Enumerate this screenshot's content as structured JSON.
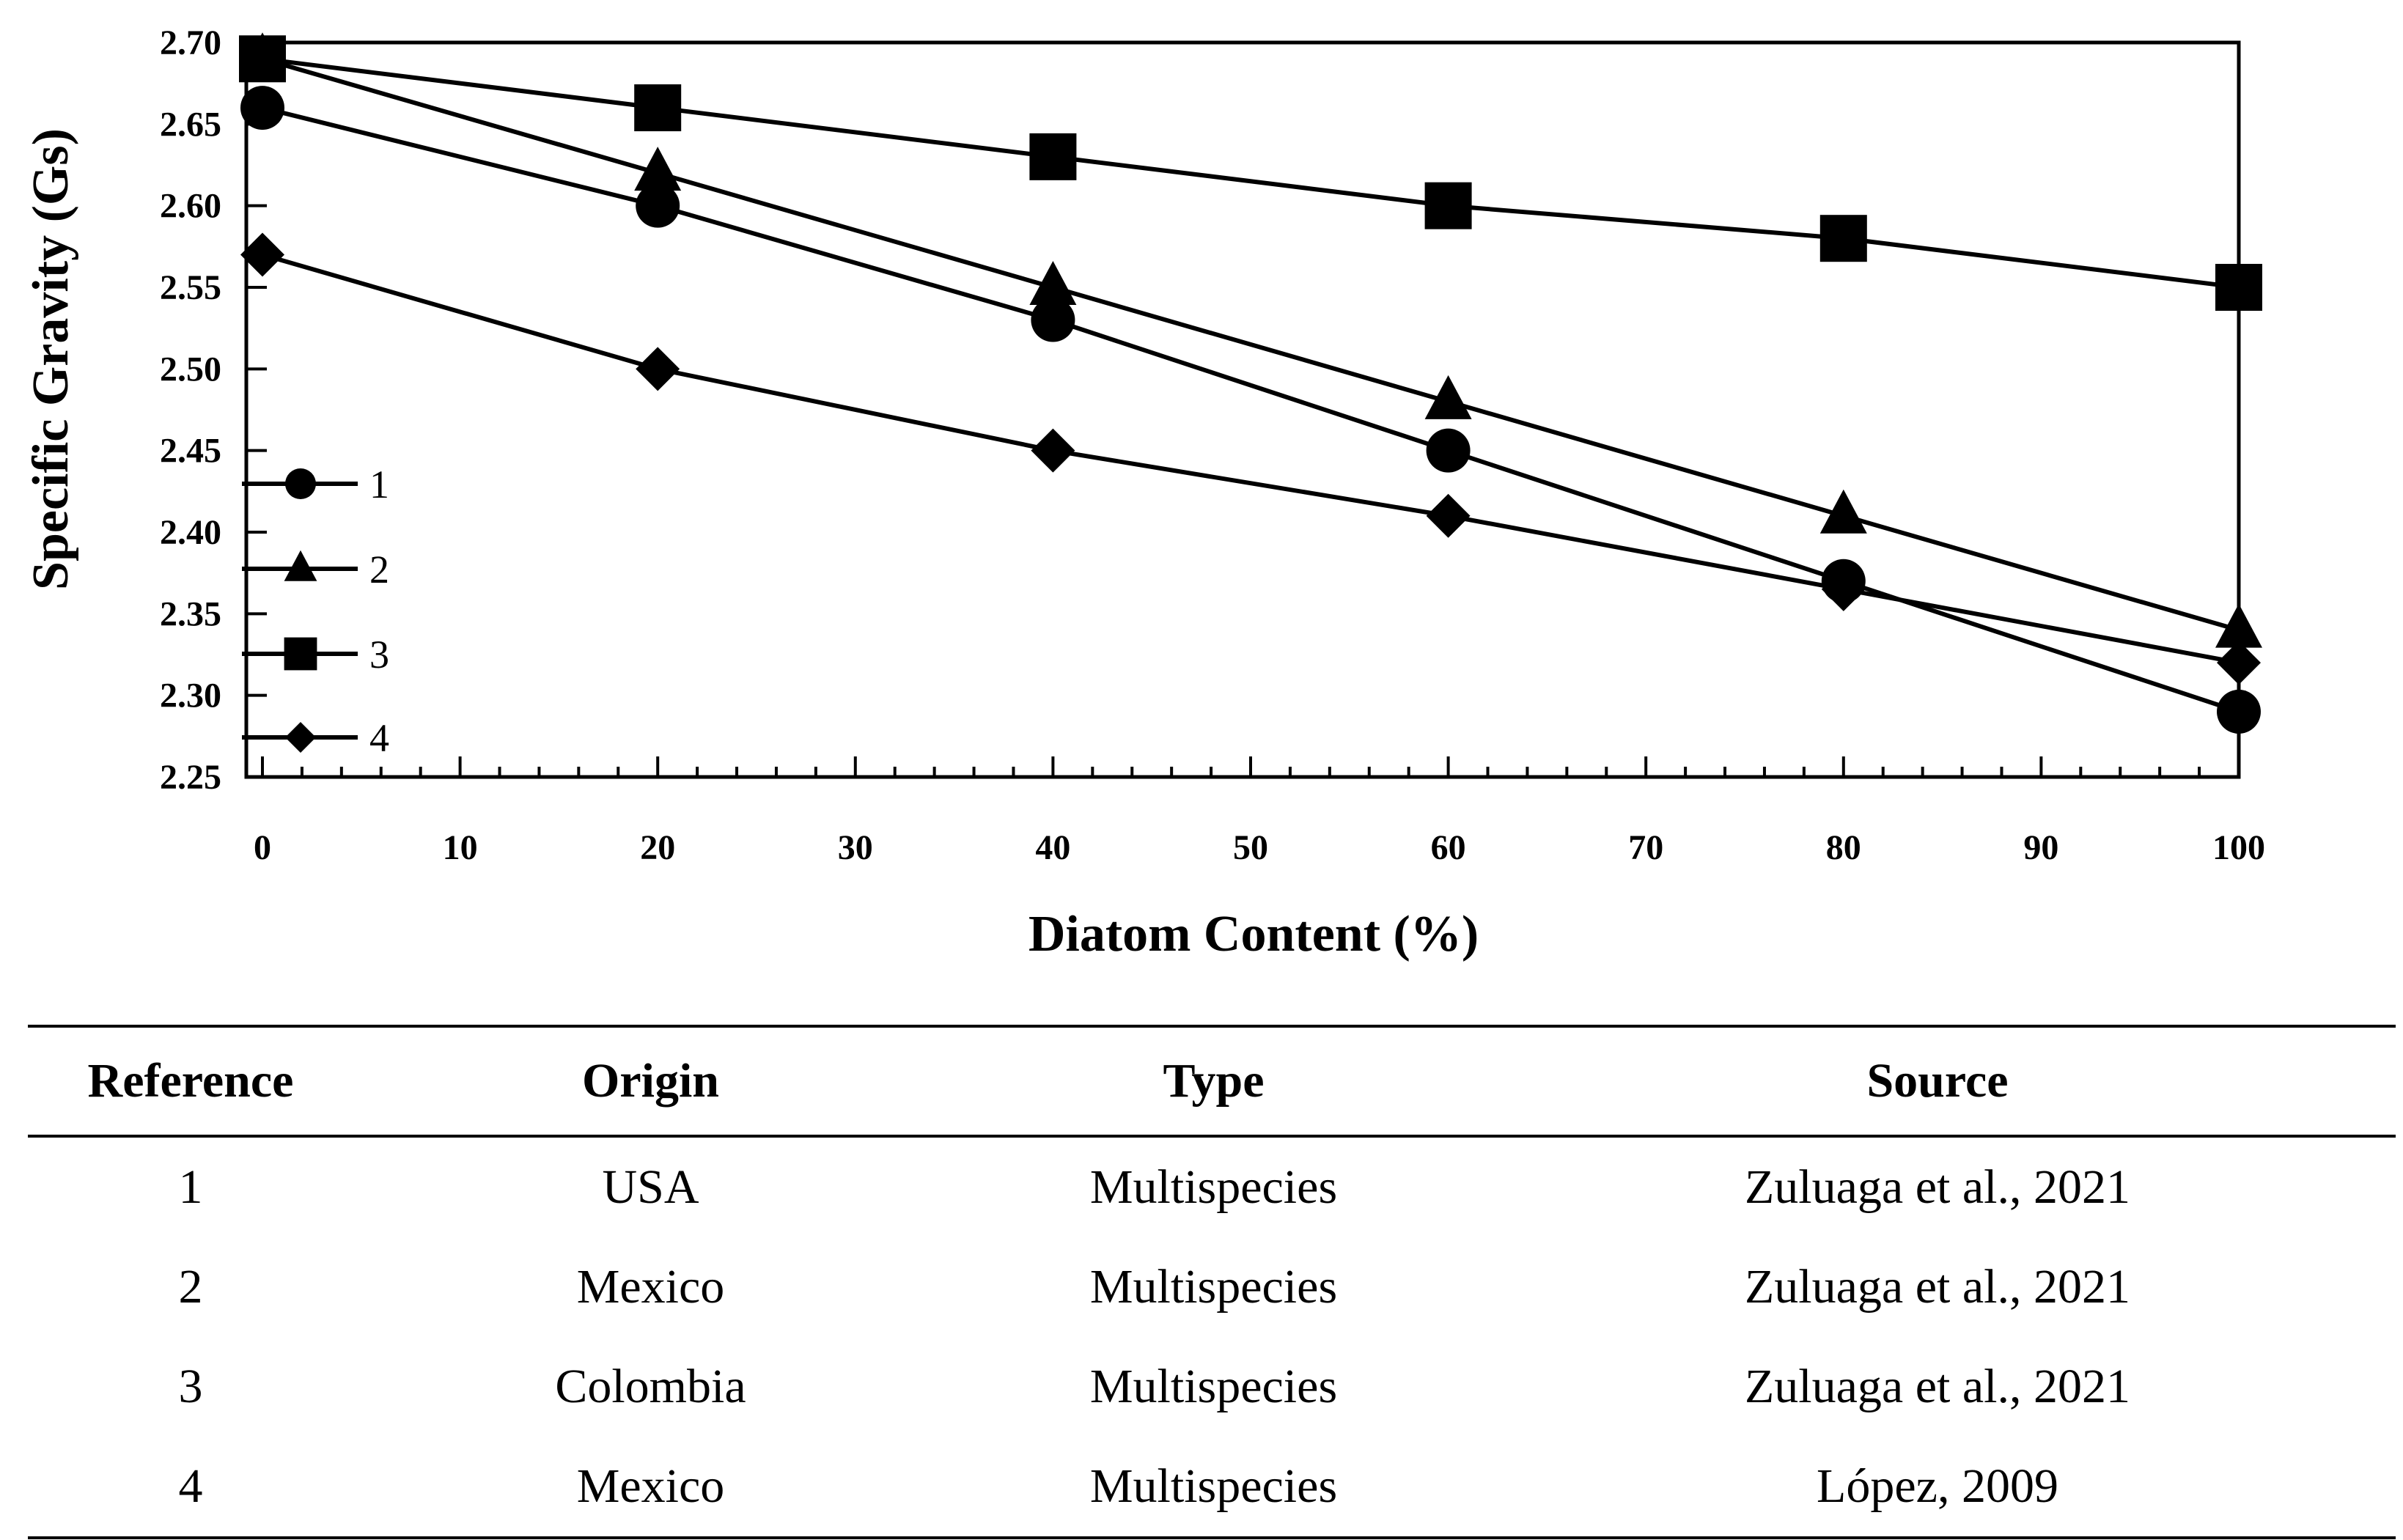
{
  "chart_data": {
    "type": "line",
    "xlabel": "Diatom Content (%)",
    "ylabel": "Specific Gravity  (Gs)",
    "xlim": [
      0,
      100
    ],
    "ylim": [
      2.25,
      2.7
    ],
    "x_ticks": [
      "0",
      "10",
      "20",
      "30",
      "40",
      "50",
      "60",
      "70",
      "80",
      "90",
      "100"
    ],
    "y_ticks": [
      "2.70",
      "2.65",
      "2.60",
      "2.55",
      "2.50",
      "2.45",
      "2.40",
      "2.35",
      "2.30",
      "2.25"
    ],
    "x": [
      0,
      20,
      40,
      60,
      80,
      100
    ],
    "legend_position": "lower-left",
    "series": [
      {
        "name": "1",
        "marker": "circle",
        "values": [
          2.66,
          2.6,
          2.53,
          2.45,
          2.37,
          2.29
        ]
      },
      {
        "name": "2",
        "marker": "triangle",
        "values": [
          2.69,
          2.62,
          2.55,
          2.48,
          2.41,
          2.34
        ]
      },
      {
        "name": "3",
        "marker": "square",
        "values": [
          2.69,
          2.66,
          2.63,
          2.6,
          2.58,
          2.55
        ]
      },
      {
        "name": "4",
        "marker": "diamond",
        "values": [
          2.57,
          2.5,
          2.45,
          2.41,
          2.365,
          2.32
        ]
      }
    ]
  },
  "table": {
    "headers": [
      "Reference",
      "Origin",
      "Type",
      "Source"
    ],
    "rows": [
      [
        "1",
        "USA",
        "Multispecies",
        "Zuluaga et al., 2021"
      ],
      [
        "2",
        "Mexico",
        "Multispecies",
        "Zuluaga et al., 2021"
      ],
      [
        "3",
        "Colombia",
        "Multispecies",
        "Zuluaga et al., 2021"
      ],
      [
        "4",
        "Mexico",
        "Multispecies",
        "López, 2009"
      ]
    ]
  }
}
